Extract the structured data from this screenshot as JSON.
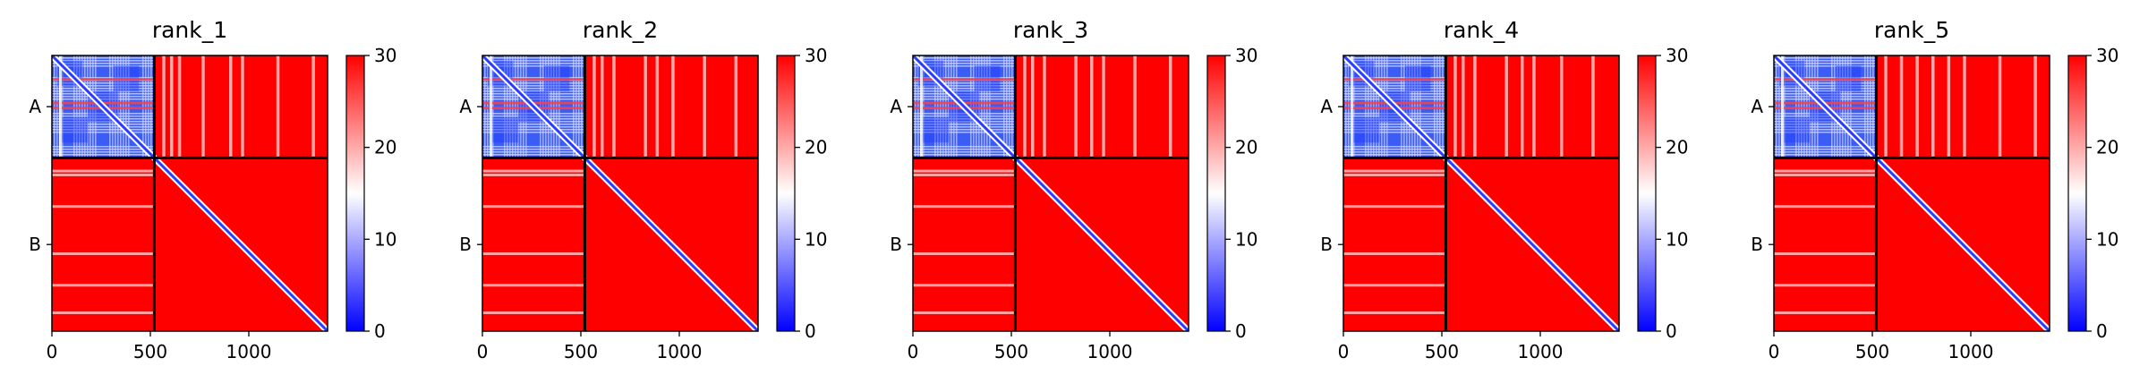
{
  "chart_data": [
    {
      "type": "heatmap",
      "title": "rank_1",
      "chains": [
        "A",
        "B"
      ],
      "chain_boundary": 520,
      "xlim": [
        0,
        1400
      ],
      "xticks": [
        0,
        500,
        1000
      ],
      "colorbar": {
        "min": 0,
        "max": 30,
        "ticks": [
          0,
          10,
          20,
          30
        ],
        "cmap": [
          "#0000ff",
          "#ffffff",
          "#ff0000"
        ]
      },
      "stripes": {
        "A_to_B_columns": [
          560,
          600,
          640,
          760,
          900,
          960,
          1140,
          1320
        ],
        "B_to_A_rows": [
          580,
          600,
          760,
          1000,
          1160,
          1300
        ]
      }
    },
    {
      "type": "heatmap",
      "title": "rank_2",
      "chains": [
        "A",
        "B"
      ],
      "chain_boundary": 520,
      "xlim": [
        0,
        1400
      ],
      "xticks": [
        0,
        500,
        1000
      ],
      "colorbar": {
        "min": 0,
        "max": 30,
        "ticks": [
          0,
          10,
          20,
          30
        ],
        "cmap": [
          "#0000ff",
          "#ffffff",
          "#ff0000"
        ]
      },
      "stripes": {
        "A_to_B_columns": [
          560,
          600,
          660,
          820,
          880,
          960,
          1120,
          1280
        ],
        "B_to_A_rows": [
          580,
          600,
          760,
          1000,
          1160,
          1300
        ]
      }
    },
    {
      "type": "heatmap",
      "title": "rank_3",
      "chains": [
        "A",
        "B"
      ],
      "chain_boundary": 520,
      "xlim": [
        0,
        1400
      ],
      "xticks": [
        0,
        500,
        1000
      ],
      "colorbar": {
        "min": 0,
        "max": 30,
        "ticks": [
          0,
          10,
          20,
          30
        ],
        "cmap": [
          "#0000ff",
          "#ffffff",
          "#ff0000"
        ]
      },
      "stripes": {
        "A_to_B_columns": [
          560,
          600,
          660,
          820,
          900,
          960,
          1120,
          1300
        ],
        "B_to_A_rows": [
          580,
          600,
          760,
          1000,
          1160,
          1300
        ]
      }
    },
    {
      "type": "heatmap",
      "title": "rank_4",
      "chains": [
        "A",
        "B"
      ],
      "chain_boundary": 520,
      "xlim": [
        0,
        1400
      ],
      "xticks": [
        0,
        500,
        1000
      ],
      "colorbar": {
        "min": 0,
        "max": 30,
        "ticks": [
          0,
          10,
          20,
          30
        ],
        "cmap": [
          "#0000ff",
          "#ffffff",
          "#ff0000"
        ]
      },
      "stripes": {
        "A_to_B_columns": [
          560,
          600,
          660,
          820,
          900,
          960,
          1100,
          1260
        ],
        "B_to_A_rows": [
          580,
          600,
          760,
          1000,
          1160,
          1300
        ]
      }
    },
    {
      "type": "heatmap",
      "title": "rank_5",
      "chains": [
        "A",
        "B"
      ],
      "chain_boundary": 520,
      "xlim": [
        0,
        1400
      ],
      "xticks": [
        0,
        500,
        1000
      ],
      "colorbar": {
        "min": 0,
        "max": 30,
        "ticks": [
          0,
          10,
          20,
          30
        ],
        "cmap": [
          "#0000ff",
          "#ffffff",
          "#ff0000"
        ]
      },
      "stripes": {
        "A_to_B_columns": [
          560,
          640,
          720,
          800,
          880,
          960,
          1140,
          1320
        ],
        "B_to_A_rows": [
          580,
          600,
          760,
          1000,
          1160,
          1300
        ]
      }
    }
  ]
}
